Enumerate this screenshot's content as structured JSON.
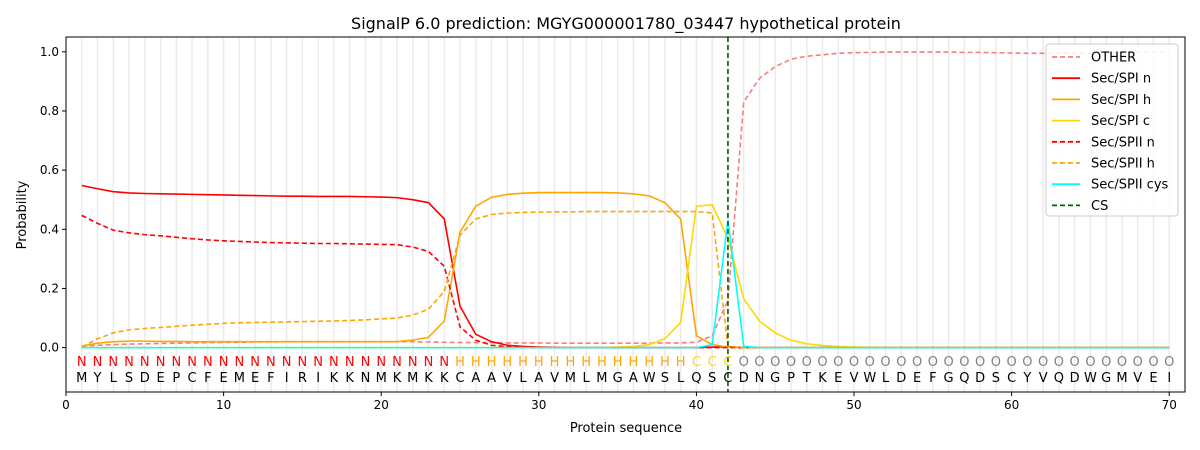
{
  "chart_data": {
    "type": "line",
    "title": "SignalP 6.0 prediction: MGYG000001780_03447 hypothetical protein",
    "xlabel": "Protein sequence",
    "ylabel": "Probability",
    "xlim": [
      0,
      71
    ],
    "ylim": [
      -0.15,
      1.05
    ],
    "xticks": [
      0,
      10,
      20,
      30,
      40,
      50,
      60,
      70
    ],
    "yticks": [
      0.0,
      0.2,
      0.4,
      0.6,
      0.8,
      1.0
    ],
    "ytick_labels": [
      "0.0",
      "0.2",
      "0.4",
      "0.6",
      "0.8",
      "1.0"
    ],
    "legend_position": "top-right",
    "grid": "vertical lines at each residue",
    "sequence": [
      "M",
      "Y",
      "L",
      "S",
      "D",
      "E",
      "P",
      "C",
      "F",
      "E",
      "M",
      "E",
      "F",
      "I",
      "R",
      "I",
      "K",
      "K",
      "N",
      "M",
      "K",
      "M",
      "K",
      "K",
      "C",
      "A",
      "A",
      "V",
      "L",
      "A",
      "V",
      "M",
      "L",
      "M",
      "G",
      "A",
      "W",
      "S",
      "L",
      "Q",
      "S",
      "C",
      "D",
      "N",
      "G",
      "P",
      "T",
      "K",
      "E",
      "V",
      "W",
      "L",
      "D",
      "E",
      "F",
      "G",
      "Q",
      "D",
      "S",
      "C",
      "Y",
      "V",
      "Q",
      "D",
      "W",
      "G",
      "M",
      "V",
      "E",
      "I"
    ],
    "region_labels": [
      "N",
      "N",
      "N",
      "N",
      "N",
      "N",
      "N",
      "N",
      "N",
      "N",
      "N",
      "N",
      "N",
      "N",
      "N",
      "N",
      "N",
      "N",
      "N",
      "N",
      "N",
      "N",
      "N",
      "N",
      "H",
      "H",
      "H",
      "H",
      "H",
      "H",
      "H",
      "H",
      "H",
      "H",
      "H",
      "H",
      "H",
      "H",
      "H",
      "C",
      "C",
      "C",
      "O",
      "O",
      "O",
      "O",
      "O",
      "O",
      "O",
      "O",
      "O",
      "O",
      "O",
      "O",
      "O",
      "O",
      "O",
      "O",
      "O",
      "O",
      "O",
      "O",
      "O",
      "O",
      "O",
      "O",
      "O",
      "O",
      "O",
      "O"
    ],
    "region_colors": {
      "N": "#ff0000",
      "H": "#ffa500",
      "C": "#ffd700",
      "O": "#808080"
    },
    "cs_position": 42,
    "series": [
      {
        "name": "OTHER",
        "color": "#f08080",
        "dash": true,
        "values": [
          0.005,
          0.008,
          0.01,
          0.012,
          0.013,
          0.014,
          0.015,
          0.016,
          0.017,
          0.018,
          0.018,
          0.019,
          0.019,
          0.02,
          0.02,
          0.02,
          0.02,
          0.02,
          0.02,
          0.02,
          0.02,
          0.02,
          0.019,
          0.018,
          0.017,
          0.017,
          0.017,
          0.016,
          0.016,
          0.016,
          0.015,
          0.015,
          0.015,
          0.015,
          0.015,
          0.015,
          0.015,
          0.016,
          0.016,
          0.018,
          0.04,
          0.16,
          0.83,
          0.91,
          0.95,
          0.975,
          0.985,
          0.99,
          0.995,
          0.997,
          0.998,
          0.999,
          0.999,
          0.999,
          0.999,
          0.999,
          0.998,
          0.998,
          0.997,
          0.996,
          0.995,
          0.995,
          0.995,
          0.996,
          0.996,
          0.997,
          0.997,
          0.998,
          0.998,
          0.998
        ]
      },
      {
        "name": "Sec/SPI n",
        "color": "#ff0000",
        "dash": false,
        "values": [
          0.548,
          0.537,
          0.527,
          0.523,
          0.521,
          0.52,
          0.519,
          0.518,
          0.517,
          0.516,
          0.515,
          0.514,
          0.513,
          0.512,
          0.512,
          0.511,
          0.511,
          0.511,
          0.51,
          0.509,
          0.507,
          0.5,
          0.49,
          0.435,
          0.14,
          0.045,
          0.02,
          0.008,
          0.004,
          0.002,
          0.001,
          0,
          0,
          0,
          0,
          0,
          0,
          0,
          0,
          0,
          0.002,
          0.003,
          0,
          0,
          0,
          0,
          0,
          0,
          0,
          0,
          0,
          0,
          0,
          0,
          0,
          0,
          0,
          0,
          0,
          0,
          0,
          0,
          0,
          0,
          0,
          0,
          0,
          0,
          0,
          0
        ]
      },
      {
        "name": "Sec/SPI h",
        "color": "#ffa500",
        "dash": false,
        "values": [
          0.005,
          0.015,
          0.02,
          0.022,
          0.022,
          0.021,
          0.021,
          0.02,
          0.02,
          0.02,
          0.02,
          0.02,
          0.02,
          0.02,
          0.02,
          0.02,
          0.02,
          0.02,
          0.02,
          0.02,
          0.02,
          0.025,
          0.035,
          0.09,
          0.39,
          0.478,
          0.508,
          0.518,
          0.522,
          0.524,
          0.524,
          0.524,
          0.524,
          0.524,
          0.523,
          0.52,
          0.513,
          0.49,
          0.435,
          0.04,
          0.01,
          0.002,
          0,
          0,
          0,
          0,
          0,
          0,
          0,
          0,
          0,
          0,
          0,
          0,
          0,
          0,
          0,
          0,
          0,
          0,
          0,
          0,
          0,
          0,
          0,
          0,
          0,
          0,
          0,
          0
        ]
      },
      {
        "name": "Sec/SPI c",
        "color": "#ffd700",
        "dash": false,
        "values": [
          0,
          0,
          0,
          0,
          0,
          0,
          0,
          0,
          0,
          0,
          0,
          0,
          0,
          0,
          0,
          0,
          0,
          0,
          0,
          0,
          0,
          0,
          0,
          0,
          0,
          0,
          0,
          0,
          0,
          0,
          0,
          0,
          0,
          0,
          0.002,
          0.004,
          0.01,
          0.03,
          0.085,
          0.478,
          0.483,
          0.37,
          0.165,
          0.09,
          0.05,
          0.025,
          0.013,
          0.007,
          0.004,
          0.002,
          0.001,
          0,
          0,
          0,
          0,
          0,
          0,
          0,
          0,
          0,
          0,
          0,
          0,
          0,
          0,
          0,
          0,
          0,
          0,
          0
        ]
      },
      {
        "name": "Sec/SPII n",
        "color": "#ff0000",
        "dash": true,
        "values": [
          0.447,
          0.42,
          0.397,
          0.388,
          0.382,
          0.378,
          0.373,
          0.368,
          0.364,
          0.361,
          0.359,
          0.357,
          0.355,
          0.354,
          0.353,
          0.352,
          0.352,
          0.351,
          0.35,
          0.349,
          0.348,
          0.34,
          0.325,
          0.275,
          0.07,
          0.025,
          0.008,
          0.003,
          0.001,
          0,
          0,
          0,
          0,
          0,
          0,
          0,
          0,
          0,
          0,
          0,
          0,
          0,
          0,
          0,
          0,
          0,
          0,
          0,
          0,
          0,
          0,
          0,
          0,
          0,
          0,
          0,
          0,
          0,
          0,
          0,
          0,
          0,
          0,
          0,
          0,
          0,
          0,
          0,
          0,
          0
        ]
      },
      {
        "name": "Sec/SPII h",
        "color": "#ffa500",
        "dash": true,
        "values": [
          0.002,
          0.03,
          0.05,
          0.06,
          0.065,
          0.068,
          0.072,
          0.076,
          0.079,
          0.082,
          0.084,
          0.085,
          0.086,
          0.087,
          0.088,
          0.089,
          0.09,
          0.092,
          0.094,
          0.097,
          0.1,
          0.11,
          0.13,
          0.19,
          0.38,
          0.435,
          0.45,
          0.455,
          0.457,
          0.458,
          0.459,
          0.459,
          0.46,
          0.46,
          0.46,
          0.46,
          0.46,
          0.46,
          0.46,
          0.46,
          0.455,
          0.005,
          0,
          0,
          0,
          0,
          0,
          0,
          0,
          0,
          0,
          0,
          0,
          0,
          0,
          0,
          0,
          0,
          0,
          0,
          0,
          0,
          0,
          0,
          0,
          0,
          0,
          0,
          0,
          0
        ]
      },
      {
        "name": "Sec/SPII cys",
        "color": "#00ffff",
        "dash": false,
        "values": [
          0,
          0,
          0,
          0,
          0,
          0,
          0,
          0,
          0,
          0,
          0,
          0,
          0,
          0,
          0,
          0,
          0,
          0,
          0,
          0,
          0,
          0,
          0,
          0,
          0,
          0,
          0,
          0,
          0,
          0,
          0,
          0,
          0,
          0,
          0,
          0,
          0,
          0,
          0,
          0,
          0.01,
          0.43,
          0.005,
          0,
          0,
          0,
          0,
          0,
          0,
          0,
          0,
          0,
          0,
          0,
          0,
          0,
          0,
          0,
          0,
          0,
          0,
          0,
          0,
          0,
          0,
          0,
          0,
          0,
          0,
          0
        ]
      }
    ],
    "cs_legend": {
      "name": "CS",
      "color": "#006400"
    }
  }
}
